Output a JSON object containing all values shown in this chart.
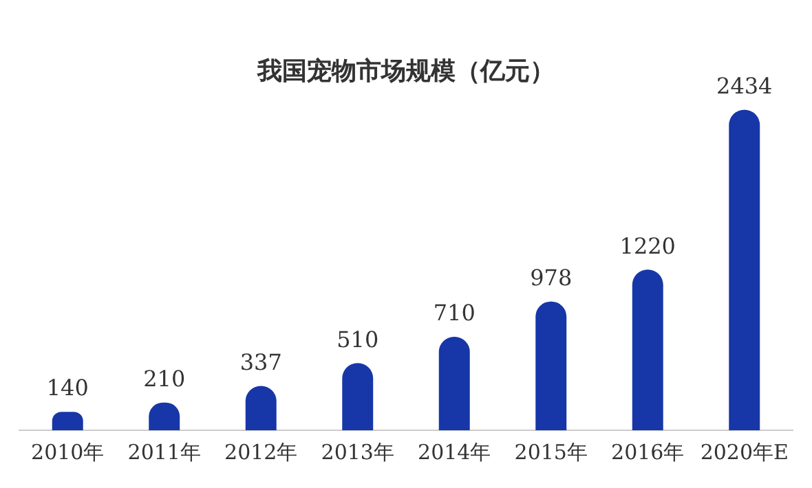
{
  "chart_data": {
    "type": "bar",
    "title": "我国宠物市场规模（亿元）",
    "categories": [
      "2010年",
      "2011年",
      "2012年",
      "2013年",
      "2014年",
      "2015年",
      "2016年",
      "2020年E"
    ],
    "values": [
      140,
      210,
      337,
      510,
      710,
      978,
      1220,
      2434
    ],
    "color": "#1736a8",
    "data_labels": true,
    "grid": false,
    "legend": false
  }
}
